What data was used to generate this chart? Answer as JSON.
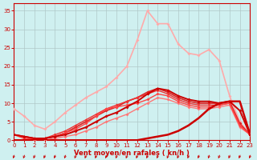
{
  "xlabel": "Vent moyen/en rafales ( kn/h )",
  "background_color": "#cff0f0",
  "grid_color": "#b0c8c8",
  "x": [
    0,
    1,
    2,
    3,
    4,
    5,
    6,
    7,
    8,
    9,
    10,
    11,
    12,
    13,
    14,
    15,
    16,
    17,
    18,
    19,
    20,
    21,
    22,
    23
  ],
  "lines": [
    {
      "y": [
        8.5,
        6.5,
        4.0,
        3.0,
        5.0,
        7.5,
        9.5,
        11.5,
        13.0,
        14.5,
        17.0,
        20.0,
        27.0,
        35.0,
        31.5,
        31.5,
        26.0,
        23.5,
        23.0,
        24.5,
        21.5,
        12.0,
        5.0,
        1.5
      ],
      "color": "#ffaaaa",
      "lw": 1.2,
      "marker": "D",
      "ms": 2.0,
      "zorder": 3
    },
    {
      "y": [
        1.5,
        1.0,
        0.5,
        0.5,
        1.0,
        1.5,
        2.5,
        3.5,
        5.0,
        6.5,
        7.5,
        9.0,
        10.5,
        12.5,
        14.0,
        13.5,
        12.0,
        11.0,
        10.5,
        10.5,
        10.0,
        10.5,
        8.0,
        1.5
      ],
      "color": "#cc0000",
      "lw": 1.4,
      "marker": "D",
      "ms": 2.0,
      "zorder": 6
    },
    {
      "y": [
        1.5,
        1.0,
        0.5,
        0.5,
        1.0,
        2.0,
        3.5,
        5.0,
        6.5,
        8.0,
        9.0,
        10.5,
        11.5,
        13.0,
        14.0,
        13.0,
        11.5,
        10.5,
        10.0,
        10.0,
        10.0,
        10.5,
        4.5,
        1.5
      ],
      "color": "#dd2222",
      "lw": 1.2,
      "marker": "D",
      "ms": 2.0,
      "zorder": 5
    },
    {
      "y": [
        1.5,
        1.0,
        0.5,
        0.5,
        1.5,
        2.5,
        4.0,
        5.5,
        7.0,
        8.5,
        9.5,
        10.5,
        11.5,
        12.5,
        13.5,
        12.5,
        11.0,
        10.0,
        9.5,
        9.5,
        9.5,
        10.0,
        4.0,
        1.5
      ],
      "color": "#ee3333",
      "lw": 1.0,
      "marker": "D",
      "ms": 2.0,
      "zorder": 5
    },
    {
      "y": [
        1.5,
        0.5,
        0.3,
        0.5,
        1.0,
        2.0,
        3.0,
        4.5,
        6.5,
        8.5,
        9.0,
        9.5,
        10.0,
        11.0,
        12.5,
        12.0,
        10.5,
        9.5,
        9.0,
        9.0,
        9.5,
        10.0,
        4.0,
        1.5
      ],
      "color": "#ff4444",
      "lw": 1.0,
      "marker": "D",
      "ms": 2.0,
      "zorder": 5
    },
    {
      "y": [
        1.5,
        0.5,
        0.0,
        0.0,
        0.5,
        1.0,
        1.5,
        2.5,
        3.5,
        5.0,
        6.0,
        7.0,
        8.5,
        10.0,
        11.5,
        11.0,
        10.0,
        9.0,
        8.5,
        8.5,
        9.0,
        9.5,
        3.5,
        1.5
      ],
      "color": "#ff7777",
      "lw": 1.0,
      "marker": "D",
      "ms": 2.0,
      "zorder": 4
    },
    {
      "y": [
        0,
        0,
        0,
        0,
        0,
        0,
        0,
        0,
        0,
        0,
        0,
        0,
        0,
        0.5,
        1.0,
        1.5,
        2.5,
        4.0,
        6.0,
        8.5,
        10.0,
        10.5,
        10.5,
        1.5
      ],
      "color": "#cc0000",
      "lw": 1.8,
      "marker": null,
      "ms": 0,
      "zorder": 7
    }
  ],
  "ylim": [
    0,
    37
  ],
  "xlim": [
    0,
    23
  ],
  "yticks": [
    0,
    5,
    10,
    15,
    20,
    25,
    30,
    35
  ],
  "xticks": [
    0,
    1,
    2,
    3,
    4,
    5,
    6,
    7,
    8,
    9,
    10,
    11,
    12,
    13,
    14,
    15,
    16,
    17,
    18,
    19,
    20,
    21,
    22,
    23
  ],
  "tick_fontsize": 5,
  "xlabel_fontsize": 6
}
